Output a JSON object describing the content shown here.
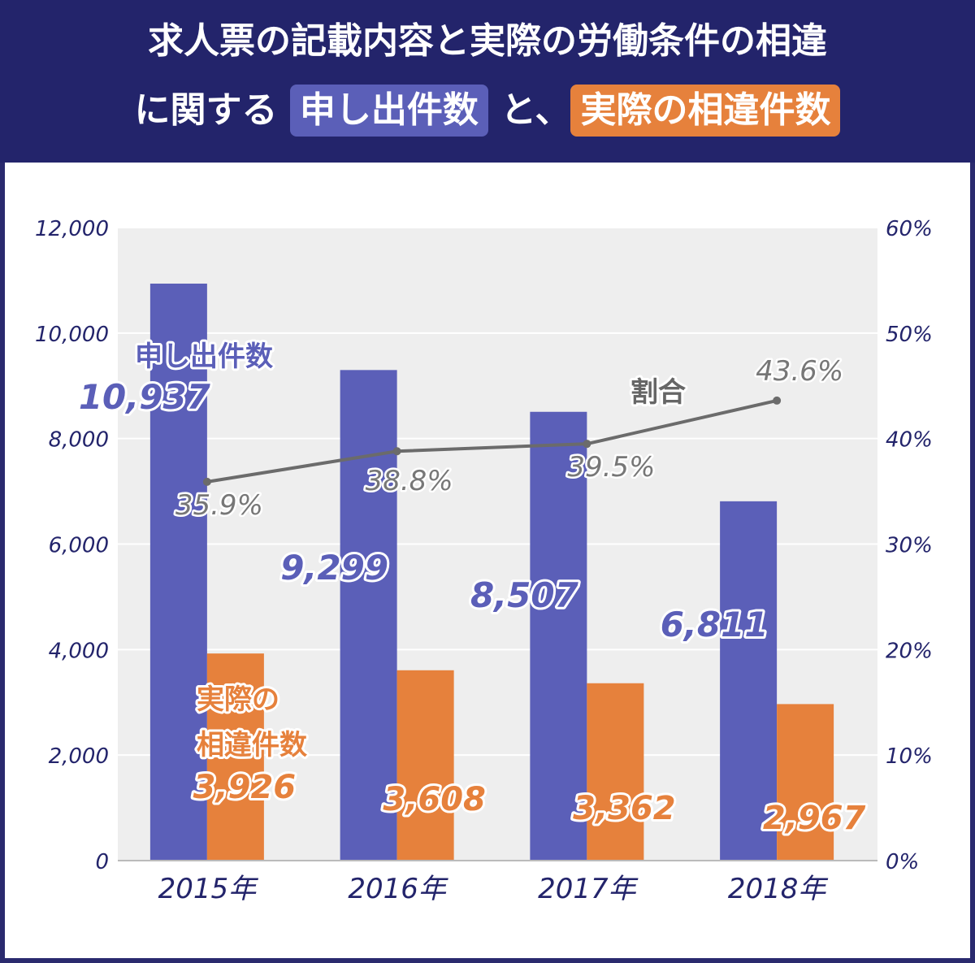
{
  "header": {
    "line1": "求人票の記載内容と実際の労働条件の相違",
    "line2_prefix": "に関する",
    "highlight1": "申し出件数",
    "middle": "と、",
    "highlight2": "実際の相違件数"
  },
  "colors": {
    "header_bg": "#23246b",
    "applications": "#5b5fb8",
    "differences": "#e6813c",
    "ratio_line": "#6b6b6b",
    "plot_bg": "#eeeeee"
  },
  "chart_data": {
    "type": "bar",
    "categories": [
      "2015年",
      "2016年",
      "2017年",
      "2018年"
    ],
    "series": [
      {
        "name": "申し出件数",
        "values": [
          10937,
          9299,
          8507,
          6811
        ],
        "labels": [
          "10,937",
          "9,299",
          "8,507",
          "6,811"
        ]
      },
      {
        "name": "実際の相違件数",
        "legend_lines": [
          "実際の",
          "相違件数"
        ],
        "values": [
          3926,
          3608,
          3362,
          2967
        ],
        "labels": [
          "3,926",
          "3,608",
          "3,362",
          "2,967"
        ]
      }
    ],
    "line_series": {
      "name": "割合",
      "values": [
        35.9,
        38.8,
        39.5,
        43.6
      ],
      "labels": [
        "35.9%",
        "38.8%",
        "39.5%",
        "43.6%"
      ]
    },
    "ylim": [
      0,
      12000
    ],
    "y_ticks": [
      "0",
      "2,000",
      "4,000",
      "6,000",
      "8,000",
      "10,000",
      "12,000"
    ],
    "y2lim": [
      0,
      60
    ],
    "y2_ticks": [
      "0%",
      "10%",
      "20%",
      "30%",
      "40%",
      "50%",
      "60%"
    ],
    "grid": true
  }
}
